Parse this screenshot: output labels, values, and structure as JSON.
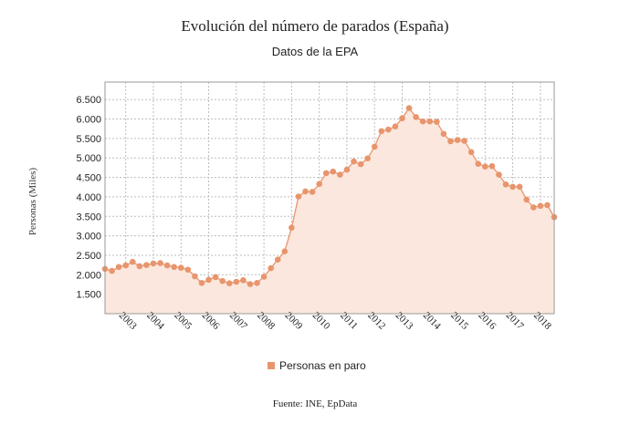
{
  "chart_data": {
    "type": "area",
    "title": "Evolución del número de parados (España)",
    "subtitle": "Datos de la EPA",
    "ylabel": "Personas (Miles)",
    "xlabel": "",
    "ylim": [
      1000,
      6950
    ],
    "yticks": [
      1500,
      2000,
      2500,
      3000,
      3500,
      4000,
      4500,
      5000,
      5500,
      6000,
      6500
    ],
    "ytick_labels": [
      "1.500",
      "2.000",
      "2.500",
      "3.000",
      "3.500",
      "4.000",
      "4.500",
      "5.000",
      "5.500",
      "6.000",
      "6.500"
    ],
    "xlim": [
      2002.25,
      2018.5
    ],
    "xticks": [
      2003,
      2004,
      2005,
      2006,
      2007,
      2008,
      2009,
      2010,
      2011,
      2012,
      2013,
      2014,
      2015,
      2016,
      2017,
      2018
    ],
    "xtick_labels": [
      "2003",
      "2004",
      "2005",
      "2006",
      "2007",
      "2008",
      "2009",
      "2010",
      "2011",
      "2012",
      "2013",
      "2014",
      "2015",
      "2016",
      "2017",
      "2018"
    ],
    "grid": true,
    "legend_position": "bottom",
    "series": [
      {
        "name": "Personas en paro",
        "color": "#e8956d",
        "fill": "#fbe7dd",
        "x": [
          2002.25,
          2002.5,
          2002.75,
          2003.0,
          2003.25,
          2003.5,
          2003.75,
          2004.0,
          2004.25,
          2004.5,
          2004.75,
          2005.0,
          2005.25,
          2005.5,
          2005.75,
          2006.0,
          2006.25,
          2006.5,
          2006.75,
          2007.0,
          2007.25,
          2007.5,
          2007.75,
          2008.0,
          2008.25,
          2008.5,
          2008.75,
          2009.0,
          2009.25,
          2009.5,
          2009.75,
          2010.0,
          2010.25,
          2010.5,
          2010.75,
          2011.0,
          2011.25,
          2011.5,
          2011.75,
          2012.0,
          2012.25,
          2012.5,
          2012.75,
          2013.0,
          2013.25,
          2013.5,
          2013.75,
          2014.0,
          2014.25,
          2014.5,
          2014.75,
          2015.0,
          2015.25,
          2015.5,
          2015.75,
          2016.0,
          2016.25,
          2016.5,
          2016.75,
          2017.0,
          2017.25,
          2017.5,
          2017.75,
          2018.0,
          2018.25,
          2018.5
        ],
        "values": [
          2150,
          2100,
          2200,
          2240,
          2330,
          2220,
          2250,
          2290,
          2300,
          2240,
          2200,
          2180,
          2130,
          1960,
          1790,
          1870,
          1940,
          1840,
          1780,
          1820,
          1860,
          1760,
          1790,
          1950,
          2170,
          2390,
          2600,
          3210,
          4010,
          4140,
          4130,
          4330,
          4610,
          4650,
          4570,
          4700,
          4910,
          4840,
          4990,
          5290,
          5690,
          5730,
          5810,
          6020,
          6280,
          6050,
          5940,
          5940,
          5930,
          5620,
          5430,
          5460,
          5440,
          5150,
          4850,
          4780,
          4790,
          4570,
          4320,
          4260,
          4260,
          3930,
          3730,
          3770,
          3790,
          3480
        ]
      }
    ]
  },
  "source_text": "Fuente: INE, EpData"
}
